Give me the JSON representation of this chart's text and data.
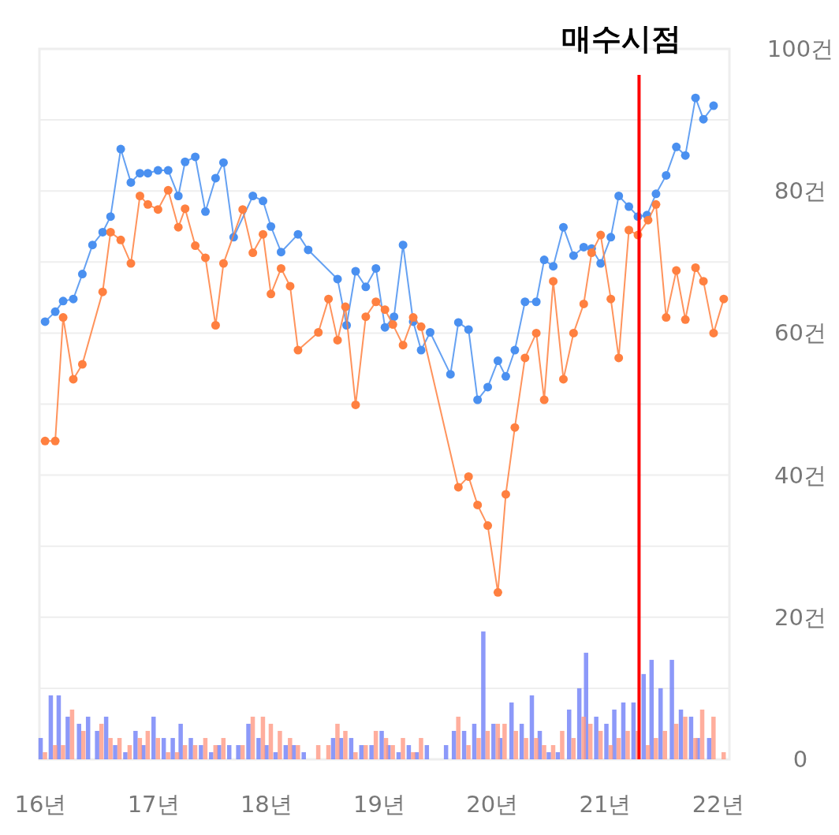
{
  "chart_data": {
    "type": "line",
    "xlim": [
      15.99,
      22.1
    ],
    "ylim": [
      0,
      100
    ],
    "xticks": [
      {
        "value": 16,
        "label": "16년"
      },
      {
        "value": 17,
        "label": "17년"
      },
      {
        "value": 18,
        "label": "18년"
      },
      {
        "value": 19,
        "label": "19년"
      },
      {
        "value": 20,
        "label": "20년"
      },
      {
        "value": 21,
        "label": "21년"
      },
      {
        "value": 22,
        "label": "22년"
      }
    ],
    "yticks": [
      0,
      {
        "value": 10,
        "label": null
      },
      {
        "value": 20,
        "label": "20건"
      },
      {
        "value": 30,
        "label": null
      },
      {
        "value": 40,
        "label": "40건"
      },
      {
        "value": 50,
        "label": null
      },
      {
        "value": 60,
        "label": "60건"
      },
      {
        "value": 70,
        "label": null
      },
      {
        "value": 80,
        "label": "80건"
      },
      {
        "value": 90,
        "label": null
      },
      {
        "value": 100,
        "label": "100건"
      }
    ],
    "grid": "y",
    "marker": "circle",
    "line_style": "solid",
    "ref_lines": [
      {
        "axis": "x",
        "value": 21.3,
        "label": "매수시점",
        "color": "#ff0000"
      }
    ],
    "series": [
      {
        "color": "#4a90f0",
        "x": [
          16.04,
          16.13,
          16.2,
          16.29,
          16.37,
          16.46,
          16.55,
          16.62,
          16.71,
          16.8,
          16.88,
          16.95,
          17.04,
          17.13,
          17.22,
          17.28,
          17.37,
          17.46,
          17.55,
          17.62,
          17.71,
          17.88,
          17.97,
          18.04,
          18.13,
          18.28,
          18.37,
          18.63,
          18.71,
          18.79,
          18.88,
          18.97,
          19.05,
          19.13,
          19.21,
          19.3,
          19.37,
          19.45,
          19.63,
          19.7,
          19.79,
          19.87,
          19.96,
          20.05,
          20.12,
          20.2,
          20.29,
          20.39,
          20.46,
          20.54,
          20.63,
          20.72,
          20.81,
          20.88,
          20.96,
          21.05,
          21.12,
          21.21,
          21.29,
          21.37,
          21.45,
          21.54,
          21.63,
          21.71,
          21.8,
          21.87,
          21.96
        ],
        "values": [
          61.6,
          63.0,
          64.5,
          64.8,
          68.3,
          72.4,
          74.2,
          76.4,
          85.9,
          81.2,
          82.5,
          82.5,
          82.9,
          82.9,
          79.3,
          84.1,
          84.8,
          77.1,
          81.8,
          84.0,
          73.5,
          79.3,
          78.6,
          75.0,
          71.4,
          73.9,
          71.7,
          67.6,
          61.1,
          68.7,
          66.5,
          69.1,
          60.8,
          62.3,
          72.4,
          61.6,
          57.6,
          60.1,
          54.2,
          61.5,
          60.5,
          50.6,
          52.4,
          56.1,
          53.9,
          57.6,
          64.4,
          64.4,
          70.3,
          69.4,
          74.9,
          70.9,
          72.1,
          71.9,
          69.8,
          73.5,
          79.3,
          77.8,
          76.4,
          76.6,
          79.6,
          82.2,
          86.2,
          85.0,
          93.1,
          90.1,
          92.0
        ]
      },
      {
        "color": "#ff8040",
        "x": [
          16.04,
          16.13,
          16.2,
          16.29,
          16.37,
          16.55,
          16.62,
          16.71,
          16.8,
          16.88,
          16.95,
          17.04,
          17.13,
          17.22,
          17.28,
          17.37,
          17.46,
          17.55,
          17.62,
          17.79,
          17.88,
          17.97,
          18.04,
          18.13,
          18.21,
          18.28,
          18.46,
          18.55,
          18.63,
          18.7,
          18.79,
          18.88,
          18.97,
          19.05,
          19.12,
          19.21,
          19.3,
          19.37,
          19.7,
          19.79,
          19.87,
          19.96,
          20.05,
          20.12,
          20.2,
          20.29,
          20.39,
          20.46,
          20.54,
          20.63,
          20.72,
          20.81,
          20.88,
          20.96,
          21.05,
          21.12,
          21.21,
          21.29,
          21.38,
          21.45,
          21.54,
          21.63,
          21.71,
          21.8,
          21.87,
          21.96,
          22.05
        ],
        "values": [
          44.8,
          44.8,
          62.2,
          53.5,
          55.6,
          65.8,
          74.2,
          73.1,
          69.8,
          79.3,
          78.1,
          77.4,
          80.1,
          74.9,
          77.5,
          72.3,
          70.6,
          61.1,
          69.8,
          77.4,
          71.3,
          73.9,
          65.5,
          69.1,
          66.6,
          57.6,
          60.1,
          64.8,
          59.0,
          63.7,
          49.9,
          62.3,
          64.4,
          63.3,
          61.2,
          58.3,
          62.2,
          60.9,
          38.3,
          39.8,
          35.8,
          32.9,
          23.5,
          37.3,
          46.7,
          56.5,
          60.0,
          50.6,
          67.3,
          53.5,
          60.0,
          64.1,
          71.3,
          73.8,
          64.8,
          56.5,
          74.5,
          73.8,
          75.9,
          78.1,
          62.2,
          68.8,
          61.9,
          69.2,
          67.3,
          60.0,
          64.8
        ]
      },
      {
        "type": "bar",
        "color": "#6f7ff7",
        "x": [
          16.02,
          16.11,
          16.18,
          16.26,
          16.36,
          16.44,
          16.52,
          16.6,
          16.68,
          16.77,
          16.86,
          16.93,
          17.02,
          17.11,
          17.19,
          17.26,
          17.35,
          17.44,
          17.53,
          17.6,
          17.69,
          17.77,
          17.86,
          17.95,
          18.02,
          18.1,
          18.19,
          18.26,
          18.35,
          18.61,
          18.68,
          18.77,
          18.86,
          18.95,
          19.04,
          19.1,
          19.19,
          19.28,
          19.35,
          19.44,
          19.61,
          19.68,
          19.77,
          19.86,
          19.94,
          20.03,
          20.09,
          20.19,
          20.28,
          20.37,
          20.44,
          20.52,
          20.6,
          20.7,
          20.79,
          20.85,
          20.94,
          21.03,
          21.1,
          21.18,
          21.27,
          21.36,
          21.43,
          21.51,
          21.61,
          21.69,
          21.78,
          21.84,
          21.94
        ],
        "values": [
          3,
          9,
          9,
          6,
          5,
          6,
          4,
          6,
          2,
          1,
          4,
          2,
          6,
          3,
          3,
          5,
          3,
          2,
          1,
          2,
          2,
          2,
          5,
          3,
          2,
          1,
          2,
          2,
          1,
          3,
          3,
          3,
          2,
          2,
          4,
          2,
          1,
          2,
          1,
          2,
          2,
          4,
          4,
          5,
          18,
          5,
          3,
          8,
          5,
          9,
          4,
          1,
          1,
          7,
          10,
          15,
          6,
          5,
          7,
          8,
          8,
          12,
          14,
          10,
          14,
          7,
          6,
          3,
          3
        ]
      },
      {
        "type": "bar",
        "color": "#ff9a85",
        "x": [
          16.02,
          16.11,
          16.18,
          16.26,
          16.36,
          16.52,
          16.6,
          16.68,
          16.77,
          16.86,
          16.93,
          17.02,
          17.11,
          17.19,
          17.26,
          17.35,
          17.44,
          17.53,
          17.6,
          17.77,
          17.86,
          17.95,
          18.02,
          18.1,
          18.19,
          18.26,
          18.44,
          18.53,
          18.61,
          18.68,
          18.77,
          18.86,
          18.95,
          19.04,
          19.1,
          19.19,
          19.28,
          19.35,
          19.68,
          19.77,
          19.86,
          19.94,
          20.03,
          20.09,
          20.19,
          20.28,
          20.37,
          20.44,
          20.52,
          20.6,
          20.7,
          20.79,
          20.85,
          20.94,
          21.03,
          21.1,
          21.18,
          21.27,
          21.36,
          21.43,
          21.51,
          21.61,
          21.69,
          21.78,
          21.84,
          21.94,
          22.03
        ],
        "values": [
          1,
          2,
          2,
          7,
          4,
          5,
          3,
          3,
          2,
          3,
          4,
          3,
          1,
          1,
          2,
          2,
          3,
          2,
          3,
          2,
          6,
          6,
          5,
          4,
          3,
          2,
          2,
          2,
          5,
          4,
          1,
          2,
          4,
          3,
          2,
          3,
          1,
          3,
          6,
          2,
          3,
          4,
          5,
          5,
          4,
          3,
          3,
          2,
          2,
          4,
          3,
          6,
          5,
          4,
          2,
          3,
          4,
          4,
          2,
          3,
          4,
          5,
          6,
          3,
          7,
          6,
          1
        ]
      }
    ]
  }
}
